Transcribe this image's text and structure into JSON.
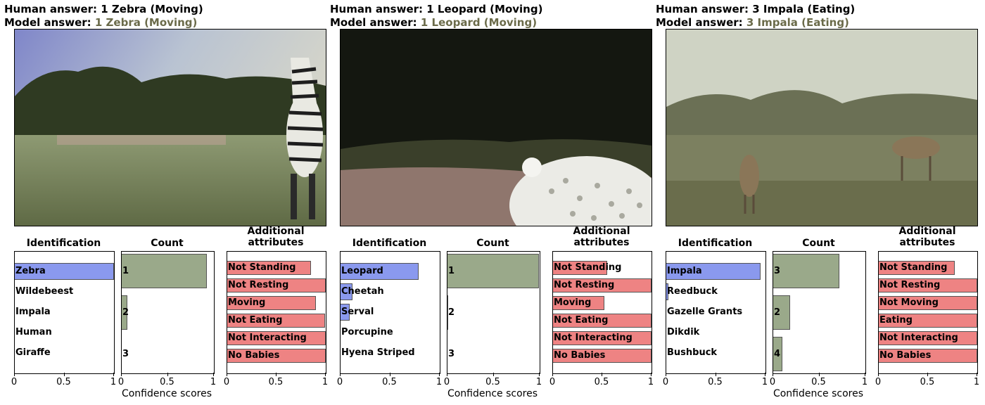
{
  "colors": {
    "identification_bar": "#8a99ee",
    "count_bar": "#9aa98a",
    "attribute_bar": "#ee8383",
    "model_answer_text": "#6b6b4a"
  },
  "axis": {
    "ticks": [
      "0",
      "0.5",
      "1"
    ],
    "xlabel": "Confidence scores"
  },
  "panels": [
    {
      "human_prefix": "Human answer: ",
      "human_value": "1 Zebra (Moving)",
      "model_prefix": "Model  answer: ",
      "model_value": "1 Zebra (Moving)",
      "photo_subject": "zebra",
      "titles": {
        "identification": "Identification",
        "count": "Count",
        "attributes_line1": "Additional",
        "attributes_line2": "attributes"
      }
    },
    {
      "human_prefix": "Human answer: ",
      "human_value": "1 Leopard (Moving)",
      "model_prefix": "Model  answer: ",
      "model_value": "1 Leopard (Moving)",
      "photo_subject": "leopard",
      "titles": {
        "identification": "Identification",
        "count": "Count",
        "attributes_line1": "Additional",
        "attributes_line2": "attributes"
      }
    },
    {
      "human_prefix": "Human answer: ",
      "human_value": "3 Impala (Eating)",
      "model_prefix": "Model  answer: ",
      "model_value": "3 Impala (Eating)",
      "photo_subject": "impala",
      "titles": {
        "identification": "Identification",
        "count": "Count",
        "attributes_line1": "Additional",
        "attributes_line2": "attributes"
      }
    }
  ],
  "chart_data": [
    {
      "panel": 1,
      "type": "bar",
      "title": "Identification",
      "xlabel": "Confidence scores",
      "xlim": [
        0,
        1
      ],
      "categories": [
        "Zebra",
        "Wildebeest",
        "Impala",
        "Human",
        "Giraffe"
      ],
      "values": [
        1.0,
        0.0,
        0.0,
        0.0,
        0.0
      ]
    },
    {
      "panel": 1,
      "type": "bar",
      "title": "Count",
      "xlabel": "Confidence scores",
      "xlim": [
        0,
        1
      ],
      "categories": [
        "1",
        "2",
        "3"
      ],
      "values": [
        0.92,
        0.06,
        0.0
      ]
    },
    {
      "panel": 1,
      "type": "bar",
      "title": "Additional attributes",
      "xlabel": "Confidence scores",
      "xlim": [
        0,
        1
      ],
      "categories": [
        "Not Standing",
        "Not Resting",
        "Moving",
        "Not Eating",
        "Not Interacting",
        "No Babies"
      ],
      "values": [
        0.85,
        1.0,
        0.9,
        0.99,
        1.0,
        1.0
      ]
    },
    {
      "panel": 2,
      "type": "bar",
      "title": "Identification",
      "xlabel": "Confidence scores",
      "xlim": [
        0,
        1
      ],
      "categories": [
        "Leopard",
        "Cheetah",
        "Serval",
        "Porcupine",
        "Hyena Striped"
      ],
      "values": [
        0.79,
        0.12,
        0.09,
        0.0,
        0.0
      ]
    },
    {
      "panel": 2,
      "type": "bar",
      "title": "Count",
      "xlabel": "Confidence scores",
      "xlim": [
        0,
        1
      ],
      "categories": [
        "1",
        "2",
        "3"
      ],
      "values": [
        0.99,
        0.01,
        0.0
      ]
    },
    {
      "panel": 2,
      "type": "bar",
      "title": "Additional attributes",
      "xlabel": "Confidence scores",
      "xlim": [
        0,
        1
      ],
      "categories": [
        "Not Standing",
        "Not Resting",
        "Moving",
        "Not Eating",
        "Not Interacting",
        "No Babies"
      ],
      "values": [
        0.55,
        1.0,
        0.52,
        1.0,
        1.0,
        1.0
      ]
    },
    {
      "panel": 3,
      "type": "bar",
      "title": "Identification",
      "xlabel": "Confidence scores",
      "xlim": [
        0,
        1
      ],
      "categories": [
        "Impala",
        "Reedbuck",
        "Gazelle Grants",
        "Dikdik",
        "Bushbuck"
      ],
      "values": [
        0.95,
        0.02,
        0.0,
        0.0,
        0.0
      ]
    },
    {
      "panel": 3,
      "type": "bar",
      "title": "Count",
      "xlabel": "Confidence scores",
      "xlim": [
        0,
        1
      ],
      "categories": [
        "3",
        "2",
        "4"
      ],
      "values": [
        0.72,
        0.18,
        0.1
      ]
    },
    {
      "panel": 3,
      "type": "bar",
      "title": "Additional attributes",
      "xlabel": "Confidence scores",
      "xlim": [
        0,
        1
      ],
      "categories": [
        "Not Standing",
        "Not Resting",
        "Not Moving",
        "Eating",
        "Not Interacting",
        "No Babies"
      ],
      "values": [
        0.77,
        1.0,
        1.0,
        1.0,
        1.0,
        1.0
      ]
    }
  ]
}
